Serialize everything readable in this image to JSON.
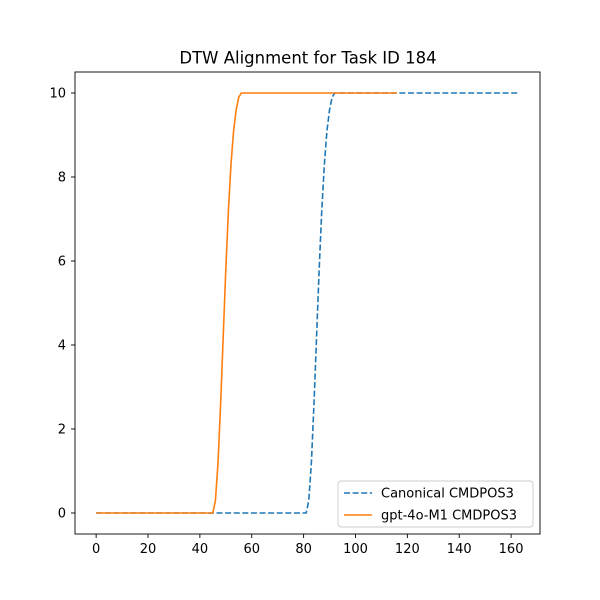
{
  "chart_data": {
    "type": "line",
    "title": "DTW Alignment for Task ID 184",
    "xlabel": "",
    "ylabel": "",
    "xlim": [
      -8.15,
      171.15
    ],
    "ylim": [
      -0.5,
      10.5
    ],
    "xticks": [
      0,
      20,
      40,
      60,
      80,
      100,
      120,
      140,
      160
    ],
    "yticks": [
      0,
      2,
      4,
      6,
      8,
      10
    ],
    "grid": false,
    "legend_position": "lower-right",
    "series": [
      {
        "name": "Canonical CMDPOS3",
        "color": "#1f77b4",
        "style": "dashed",
        "x": [
          0,
          20,
          40,
          60,
          80,
          81,
          82,
          83,
          84,
          85,
          86,
          87,
          88,
          89,
          90,
          91,
          92,
          93,
          100,
          120,
          140,
          160,
          163
        ],
        "y": [
          0,
          0,
          0,
          0,
          0,
          0,
          0.3,
          1.2,
          2.6,
          4.2,
          5.8,
          7.2,
          8.3,
          9.1,
          9.6,
          9.9,
          10,
          10,
          10,
          10,
          10,
          10,
          10
        ]
      },
      {
        "name": "gpt-4o-M1 CMDPOS3",
        "color": "#ff7f0e",
        "style": "solid",
        "x": [
          0,
          20,
          40,
          45,
          46,
          47,
          48,
          49,
          50,
          51,
          52,
          53,
          54,
          55,
          56,
          57,
          60,
          80,
          100,
          116
        ],
        "y": [
          0,
          0,
          0,
          0,
          0.3,
          1.2,
          2.6,
          4.2,
          5.8,
          7.2,
          8.3,
          9.1,
          9.6,
          9.9,
          10,
          10,
          10,
          10,
          10,
          10
        ]
      }
    ]
  }
}
